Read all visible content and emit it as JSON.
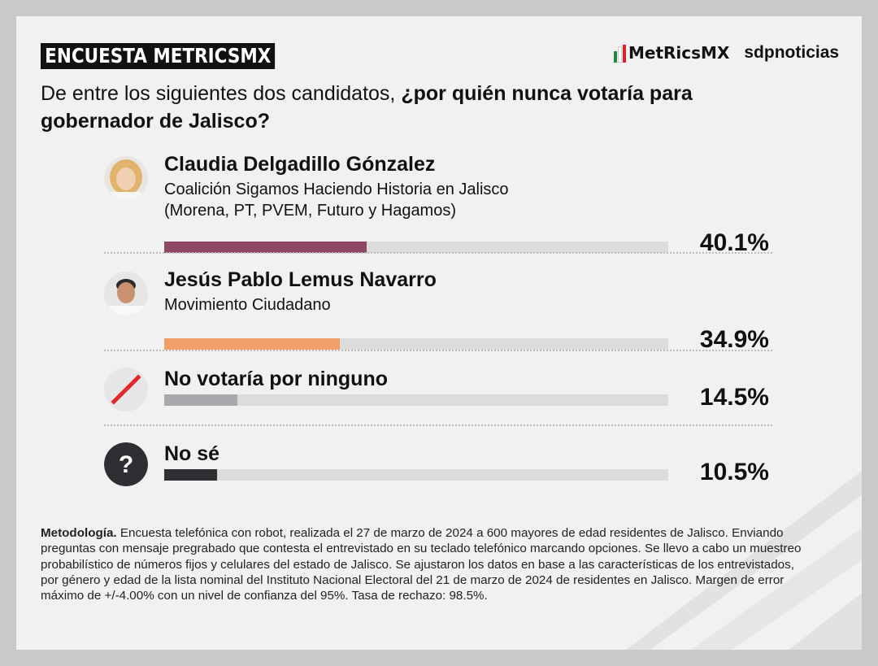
{
  "header": {
    "tag": "ENCUESTA METRICSMX",
    "logo_metrics": "MetRicsMX",
    "logo_sdp": "sdpnoticias"
  },
  "question": {
    "normal": "De entre los siguientes dos candidatos, ",
    "bold": "¿por quién nunca votaría para gobernador de Jalisco?"
  },
  "chart_data": {
    "type": "bar",
    "categories": [
      "Claudia Delgadillo Gónzalez",
      "Jesús Pablo Lemus Navarro",
      "No votaría por ninguno",
      "No sé"
    ],
    "subtitles": [
      "Coalición Sigamos Haciendo Historia en Jalisco",
      "Movimiento Ciudadano",
      "",
      ""
    ],
    "subtitles2": [
      "(Morena, PT, PVEM, Futuro y Hagamos)",
      "",
      "",
      ""
    ],
    "values": [
      40.1,
      34.9,
      14.5,
      10.5
    ],
    "labels": [
      "40.1%",
      "34.9%",
      "14.5%",
      "10.5%"
    ],
    "colors": [
      "#8e4866",
      "#ef9f67",
      "#a7a9ac",
      "#2f2f33"
    ],
    "ylim": [
      0,
      100
    ]
  },
  "icons": [
    "avatar-claudia",
    "avatar-jesus",
    "slash-icon",
    "question-icon"
  ],
  "question_icon_glyph": "?",
  "methodology": {
    "label": "Metodología.",
    "text": " Encuesta telefónica con robot, realizada el 27 de marzo de 2024 a 600 mayores de edad residentes de Jalisco. Enviando preguntas con mensaje pregrabado que contesta el entrevistado en su teclado telefónico marcando opciones. Se llevo a cabo un muestreo probabilístico de números fijos y celulares del estado de Jalisco. Se ajustaron los datos en base a las características de los entrevistados, por género y edad de la lista nominal del Instituto Nacional Electoral del 21 de marzo de 2024 de residentes en Jalisco. Margen de error máximo de +/-4.00% con un nivel de confianza del 95%. Tasa de rechazo: 98.5%."
  }
}
